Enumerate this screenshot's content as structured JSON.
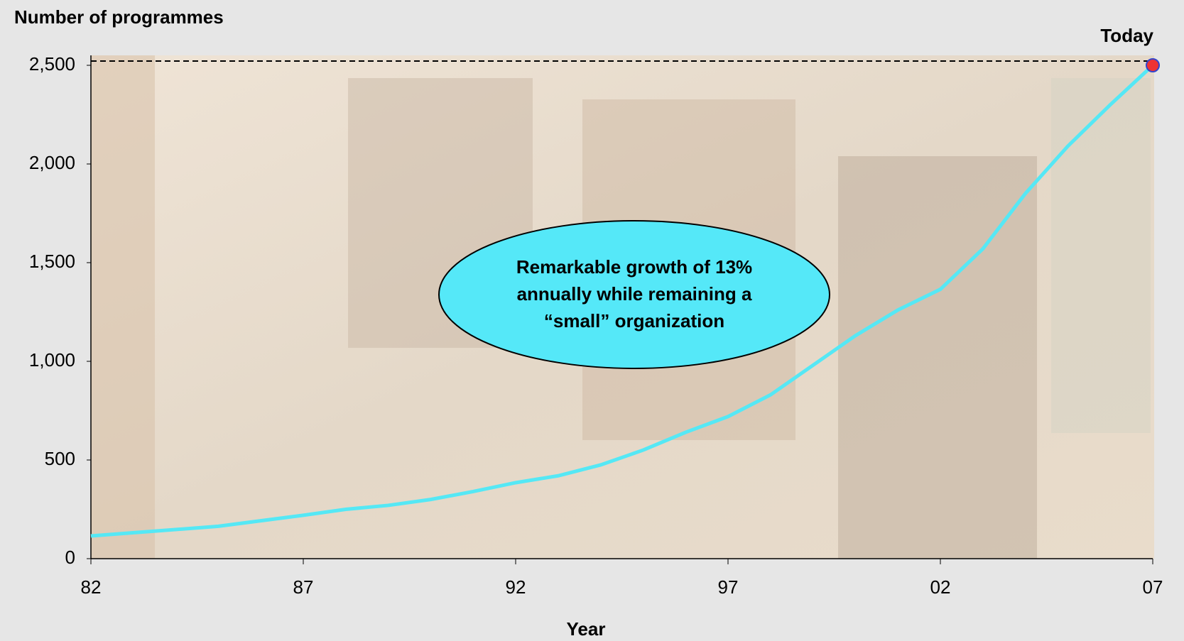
{
  "chart_data": {
    "type": "line",
    "y_label": "Number of programmes",
    "x_label": "Year",
    "end_label": "Today",
    "annotation": [
      "Remarkable growth of 13%",
      "annually while remaining a",
      "“small” organization"
    ],
    "x": [
      1982,
      1985,
      1987,
      1988,
      1989,
      1990,
      1991,
      1992,
      1993,
      1994,
      1995,
      1996,
      1997,
      1998,
      1999,
      2000,
      2001,
      2002,
      2003,
      2004,
      2005,
      2006,
      2007
    ],
    "series": [
      {
        "name": "Programmes",
        "color": "#55e8f5",
        "values": [
          115,
          164,
          220,
          250,
          270,
          300,
          340,
          385,
          420,
          475,
          550,
          640,
          720,
          830,
          980,
          1130,
          1260,
          1365,
          1570,
          1850,
          2090,
          2300,
          2500
        ]
      }
    ],
    "end_marker_color": "#ee3333",
    "xlim": [
      1982,
      2007
    ],
    "xticks": [
      {
        "value": 1982,
        "label": "82"
      },
      {
        "value": 1987,
        "label": "87"
      },
      {
        "value": 1992,
        "label": "92"
      },
      {
        "value": 1997,
        "label": "97"
      },
      {
        "value": 2002,
        "label": "02"
      },
      {
        "value": 2007,
        "label": "07"
      }
    ],
    "ylim": [
      0,
      2500
    ],
    "yticks": [
      0,
      {
        "value": 500,
        "label": "500"
      },
      {
        "value": 1000,
        "label": "1,000"
      },
      {
        "value": 1500,
        "label": "1,500"
      },
      {
        "value": 2000,
        "label": "2,000"
      },
      {
        "value": 2500,
        "label": "2,500"
      }
    ]
  }
}
